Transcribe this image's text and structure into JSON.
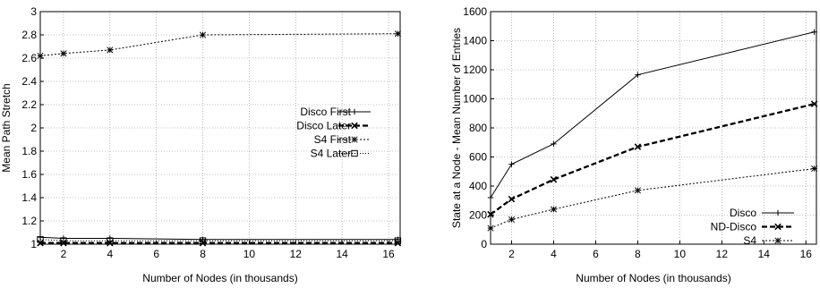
{
  "chart_data": [
    {
      "type": "line",
      "xlabel": "Number of Nodes (in thousands)",
      "ylabel": "Mean Path Stretch",
      "xlim": [
        1,
        16.5
      ],
      "ylim": [
        1,
        3
      ],
      "x_ticks": [
        2,
        4,
        6,
        8,
        10,
        12,
        14,
        16
      ],
      "y_ticks": [
        1,
        1.2,
        1.4,
        1.6,
        1.8,
        2,
        2.2,
        2.4,
        2.6,
        2.8,
        3
      ],
      "y_tick_labels": [
        "1",
        "1.2",
        "1.4",
        "1.6",
        "1.8",
        "2",
        "2.2",
        "2.4",
        "2.6",
        "2.8",
        "3"
      ],
      "grid": true,
      "legend_position": "right-middle",
      "series": [
        {
          "name": "Disco First",
          "style": "solid-plus",
          "x": [
            1,
            2,
            4,
            8,
            16.4
          ],
          "y": [
            1.06,
            1.05,
            1.05,
            1.04,
            1.04
          ]
        },
        {
          "name": "Disco Later",
          "style": "thick-dash-x",
          "x": [
            1,
            2,
            4,
            8,
            16.4
          ],
          "y": [
            1.01,
            1.01,
            1.01,
            1.01,
            1.01
          ]
        },
        {
          "name": "S4 First",
          "style": "dotted-star",
          "x": [
            1,
            2,
            4,
            8,
            16.4
          ],
          "y": [
            2.62,
            2.64,
            2.67,
            2.8,
            2.81
          ]
        },
        {
          "name": "S4 Later",
          "style": "dotted-square",
          "x": [
            1,
            2,
            4,
            8,
            16.4
          ],
          "y": [
            1.04,
            1.03,
            1.03,
            1.03,
            1.03
          ]
        }
      ]
    },
    {
      "type": "line",
      "xlabel": "Number of Nodes (in thousands)",
      "ylabel": "State at a Node - Mean Number of Entries",
      "xlim": [
        1,
        16.5
      ],
      "ylim": [
        0,
        1600
      ],
      "x_ticks": [
        2,
        4,
        6,
        8,
        10,
        12,
        14,
        16
      ],
      "y_ticks": [
        0,
        200,
        400,
        600,
        800,
        1000,
        1200,
        1400,
        1600
      ],
      "y_tick_labels": [
        "0",
        "200",
        "400",
        "600",
        "800",
        "1000",
        "1200",
        "1400",
        "1600"
      ],
      "grid": true,
      "legend_position": "bottom-right",
      "series": [
        {
          "name": "Disco",
          "style": "solid-plus",
          "x": [
            1,
            2,
            4,
            8,
            16.4
          ],
          "y": [
            320,
            550,
            690,
            1165,
            1460
          ]
        },
        {
          "name": "ND-Disco",
          "style": "thick-dash-x",
          "x": [
            1,
            2,
            4,
            8,
            16.4
          ],
          "y": [
            205,
            310,
            445,
            670,
            965
          ]
        },
        {
          "name": "S4",
          "style": "dotted-star",
          "x": [
            1,
            2,
            4,
            8,
            16.4
          ],
          "y": [
            110,
            170,
            240,
            370,
            520
          ]
        }
      ]
    }
  ]
}
